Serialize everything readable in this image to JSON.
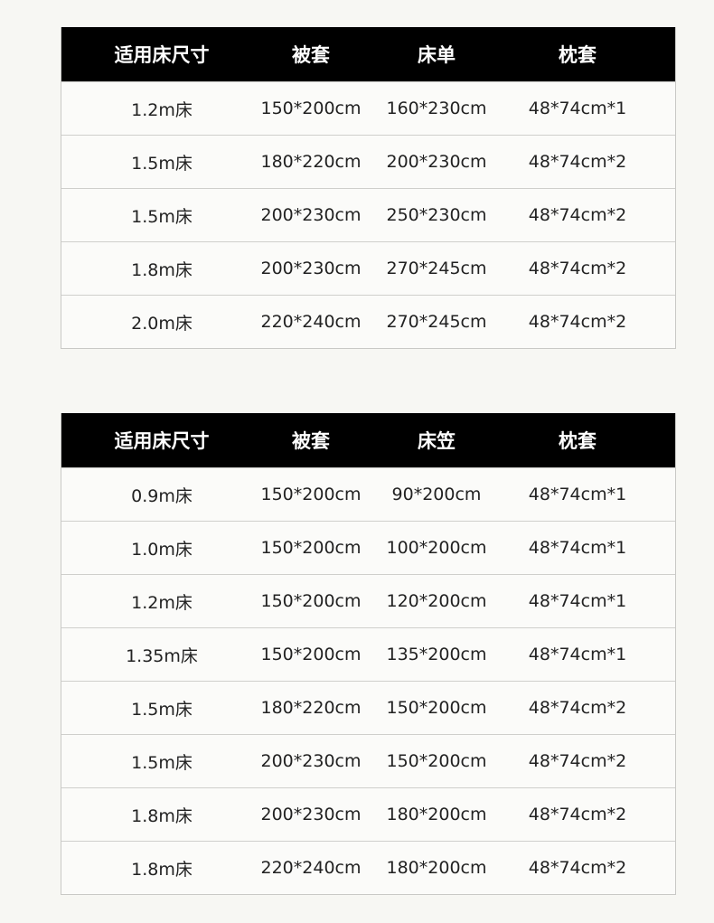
{
  "tables": [
    {
      "header": [
        "适用床尺寸",
        "被套",
        "床单",
        "枕套"
      ],
      "rows": [
        [
          "1.2m床",
          "150*200cm",
          "160*230cm",
          "48*74cm*1"
        ],
        [
          "1.5m床",
          "180*220cm",
          "200*230cm",
          "48*74cm*2"
        ],
        [
          "1.5m床",
          "200*230cm",
          "250*230cm",
          "48*74cm*2"
        ],
        [
          "1.8m床",
          "200*230cm",
          "270*245cm",
          "48*74cm*2"
        ],
        [
          "2.0m床",
          "220*240cm",
          "270*245cm",
          "48*74cm*2"
        ]
      ]
    },
    {
      "header": [
        "适用床尺寸",
        "被套",
        "床笠",
        "枕套"
      ],
      "rows": [
        [
          "0.9m床",
          "150*200cm",
          "90*200cm",
          "48*74cm*1"
        ],
        [
          "1.0m床",
          "150*200cm",
          "100*200cm",
          "48*74cm*1"
        ],
        [
          "1.2m床",
          "150*200cm",
          "120*200cm",
          "48*74cm*1"
        ],
        [
          "1.35m床",
          "150*200cm",
          "135*200cm",
          "48*74cm*1"
        ],
        [
          "1.5m床",
          "180*220cm",
          "150*200cm",
          "48*74cm*2"
        ],
        [
          "1.5m床",
          "200*230cm",
          "150*200cm",
          "48*74cm*2"
        ],
        [
          "1.8m床",
          "200*230cm",
          "180*200cm",
          "48*74cm*2"
        ],
        [
          "1.8m床",
          "220*240cm",
          "180*200cm",
          "48*74cm*2"
        ]
      ]
    }
  ]
}
